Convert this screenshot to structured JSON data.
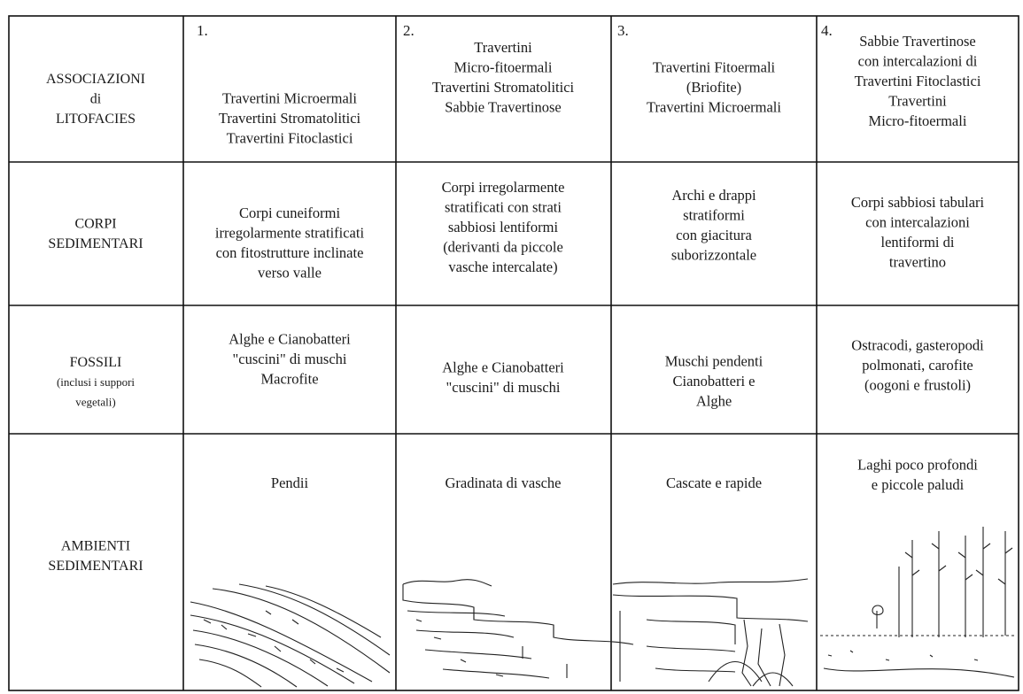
{
  "table": {
    "row_headers": [
      [
        "ASSOCIAZIONI",
        "di",
        "LITOFACIES"
      ],
      [
        "CORPI",
        "SEDIMENTARI"
      ],
      [
        "FOSSILI",
        "(inclusi i suppori",
        "vegetali)"
      ],
      [
        "AMBIENTI",
        "SEDIMENTARI"
      ]
    ],
    "columns": [
      {
        "number": "1.",
        "cells": [
          [
            "Travertini Microermali",
            "Travertini Stromatolitici",
            "Travertini Fitoclastici"
          ],
          [
            "Corpi cuneiformi",
            "irregolarmente stratificati",
            "con fitostrutture inclinate",
            "verso valle"
          ],
          [
            "Alghe e Cianobatteri",
            "\"cuscini\" di muschi",
            "Macrofite"
          ],
          [
            "Pendii"
          ]
        ]
      },
      {
        "number": "2.",
        "cells": [
          [
            "Travertini",
            "Micro-fitoermali",
            "Travertini Stromatolitici",
            "Sabbie Travertinose"
          ],
          [
            "Corpi irregolarmente",
            "stratificati con strati",
            "sabbiosi lentiformi",
            "(derivanti da piccole",
            "vasche intercalate)"
          ],
          [
            "Alghe e Cianobatteri",
            "\"cuscini\" di muschi"
          ],
          [
            "Gradinata di vasche"
          ]
        ]
      },
      {
        "number": "3.",
        "cells": [
          [
            "Travertini Fitoermali",
            "(Briofite)",
            "Travertini Microermali"
          ],
          [
            "Archi e drappi",
            "stratiformi",
            "con giacitura",
            "suborizzontale"
          ],
          [
            "Muschi pendenti",
            "Cianobatteri e",
            "Alghe"
          ],
          [
            "Cascate e rapide"
          ]
        ]
      },
      {
        "number": "4.",
        "cells": [
          [
            "Sabbie Travertinose",
            "con intercalazioni di",
            "Travertini Fitoclastici",
            "Travertini",
            "Micro-fitoermali"
          ],
          [
            "Corpi sabbiosi tabulari",
            "con intercalazioni",
            "lentiformi di",
            "travertino"
          ],
          [
            "Ostracodi, gasteropodi",
            "polmonati, carofite",
            "(oogoni e frustoli)"
          ],
          [
            "Laghi poco profondi",
            "e piccole paludi"
          ]
        ]
      }
    ]
  }
}
